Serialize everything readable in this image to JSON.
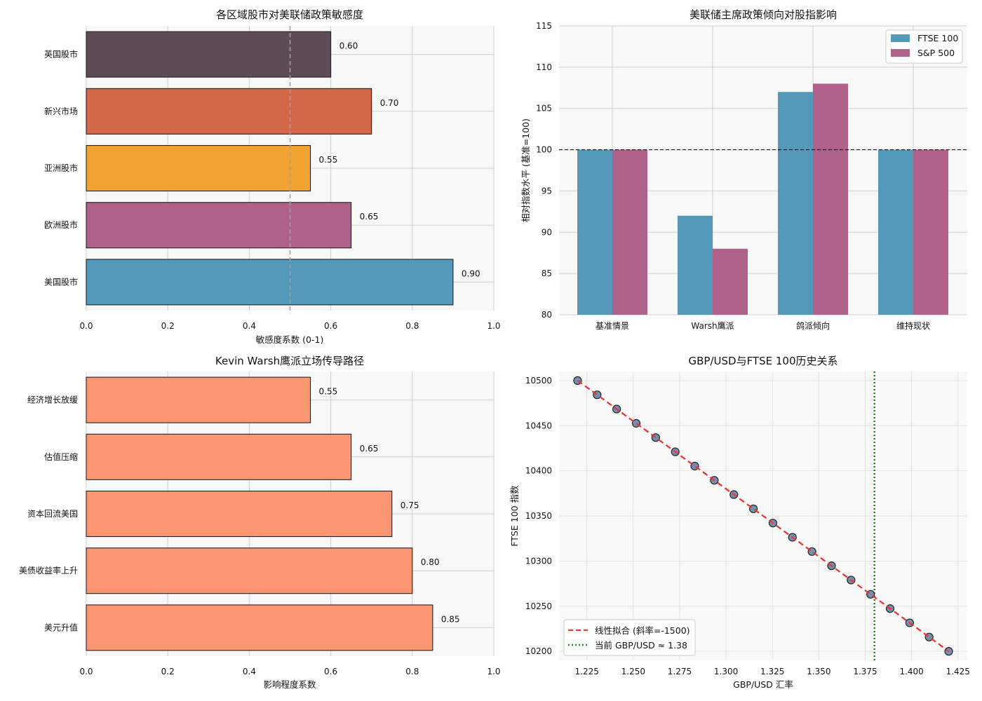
{
  "chart_data": [
    {
      "id": "sensitivity",
      "type": "bar",
      "orientation": "horizontal",
      "title": "各区域股市对美联储政策敏感度",
      "xlabel": "敏感度系数 (0-1)",
      "ylabel": "",
      "xlim": [
        0,
        1.0
      ],
      "xticks": [
        "0.0",
        "0.2",
        "0.4",
        "0.6",
        "0.8",
        "1.0"
      ],
      "categories": [
        "英国股市",
        "新兴市场",
        "亚洲股市",
        "欧洲股市",
        "美国股市"
      ],
      "values": [
        0.6,
        0.7,
        0.55,
        0.65,
        0.9
      ],
      "value_labels": [
        "0.60",
        "0.70",
        "0.55",
        "0.65",
        "0.90"
      ],
      "colors": [
        "#5f4b55",
        "#d4664a",
        "#f0a330",
        "#b0618a",
        "#5499ba"
      ],
      "reference_x": 0.5
    },
    {
      "id": "fed-chair",
      "type": "bar",
      "orientation": "vertical",
      "title": "美联储主席政策倾向对股指影响",
      "xlabel": "",
      "ylabel": "相对指数水平 (基准=100)",
      "ylim": [
        80,
        115
      ],
      "yticks": [
        "80",
        "85",
        "90",
        "95",
        "100",
        "105",
        "110",
        "115"
      ],
      "categories": [
        "基准情景",
        "Warsh鹰派",
        "鸽派倾向",
        "维持现状"
      ],
      "series": [
        {
          "name": "FTSE 100",
          "values": [
            100,
            92,
            107,
            100
          ],
          "color": "#5499ba"
        },
        {
          "name": "S&P 500",
          "values": [
            100,
            88,
            108,
            100
          ],
          "color": "#b0618a"
        }
      ],
      "reference_y": 100,
      "legend": "top-right"
    },
    {
      "id": "transmission",
      "type": "bar",
      "orientation": "horizontal",
      "title": "Kevin Warsh鹰派立场传导路径",
      "xlabel": "影响程度系数",
      "ylabel": "",
      "xlim": [
        0,
        1.0
      ],
      "xticks": [
        "0.0",
        "0.2",
        "0.4",
        "0.6",
        "0.8",
        "1.0"
      ],
      "categories": [
        "经济增长放缓",
        "估值压缩",
        "资本回流美国",
        "美债收益率上升",
        "美元升值"
      ],
      "values": [
        0.55,
        0.65,
        0.75,
        0.8,
        0.85
      ],
      "value_labels": [
        "0.55",
        "0.65",
        "0.75",
        "0.80",
        "0.85"
      ],
      "color": "#fa9671"
    },
    {
      "id": "gbpusd",
      "type": "scatter",
      "title": "GBP/USD与FTSE 100历史关系",
      "xlabel": "GBP/USD 汇率",
      "ylabel": "FTSE 100 指数",
      "xlim": [
        1.21,
        1.43
      ],
      "ylim": [
        10190,
        10510
      ],
      "xticks": [
        "1.225",
        "1.250",
        "1.275",
        "1.300",
        "1.325",
        "1.350",
        "1.375",
        "1.400",
        "1.425"
      ],
      "yticks": [
        "10200",
        "10250",
        "10300",
        "10350",
        "10400",
        "10450",
        "10500"
      ],
      "x_start": 1.22,
      "x_end": 1.42,
      "n_points": 20,
      "fit": {
        "slope": -1500,
        "intercept": 12330
      },
      "current_x": 1.38,
      "legend": "bottom-left",
      "legend_entries": [
        "线性拟合 (斜率=-1500)",
        "当前 GBP/USD ≈ 1.38"
      ],
      "colors": {
        "point": "#5b7fa6",
        "fit": "#ee3333",
        "current": "#228b22"
      }
    }
  ]
}
